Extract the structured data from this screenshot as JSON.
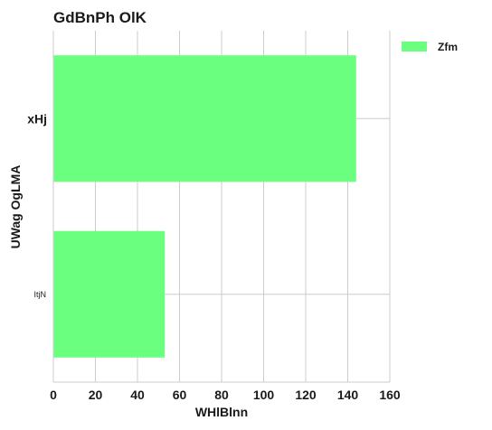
{
  "chart_data": {
    "type": "bar",
    "orientation": "horizontal",
    "title": "GdBnPh  OlK",
    "xlabel": "WHlBlnn",
    "ylabel": "UWag OgLMA",
    "categories": [
      "xHj",
      "ItjN"
    ],
    "series": [
      {
        "name": "Zfm",
        "values": [
          144,
          53
        ],
        "color": "#6bff80"
      }
    ],
    "xlim": [
      0,
      160
    ],
    "xticks": [
      "0",
      "20",
      "40",
      "60",
      "80",
      "100",
      "120",
      "140",
      "160"
    ],
    "grid": true,
    "legend_position": "top-right"
  }
}
